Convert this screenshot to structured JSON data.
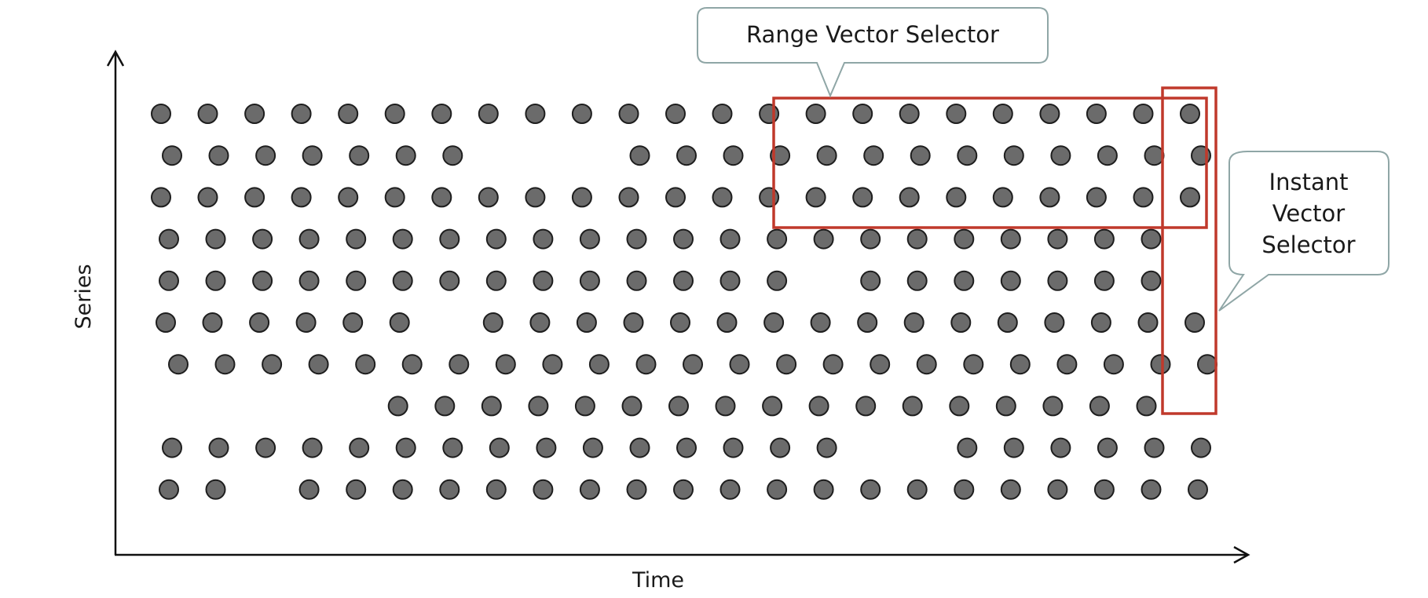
{
  "axes": {
    "x_label": "Time",
    "y_label": "Series"
  },
  "callouts": {
    "range_selector_label": "Range Vector Selector",
    "instant_selector_lines": [
      "Instant",
      "Vector",
      "Selector"
    ]
  },
  "colors": {
    "sample_fill": "#6b6b6b",
    "sample_stroke": "#1e1e1e",
    "selector_border": "#c0392b",
    "callout_border": "#8fa6a6",
    "axis": "#111111"
  },
  "samples": {
    "slots_per_series": 23,
    "range_window_slots": [
      14,
      22
    ],
    "instant_slot": 22,
    "range_window_series": [
      0,
      2
    ],
    "instant_series": [
      0,
      6
    ],
    "presence": [
      "11111111111111111111111",
      "11111110001111111111111",
      "11111111111111111111111",
      "11111111111111111111110",
      "11111111111111011111110",
      "11111101111111111111111",
      "11111111111111111111111",
      "00000111111111111111110",
      "11111111111111100111111",
      "11011111111111111111111"
    ]
  }
}
